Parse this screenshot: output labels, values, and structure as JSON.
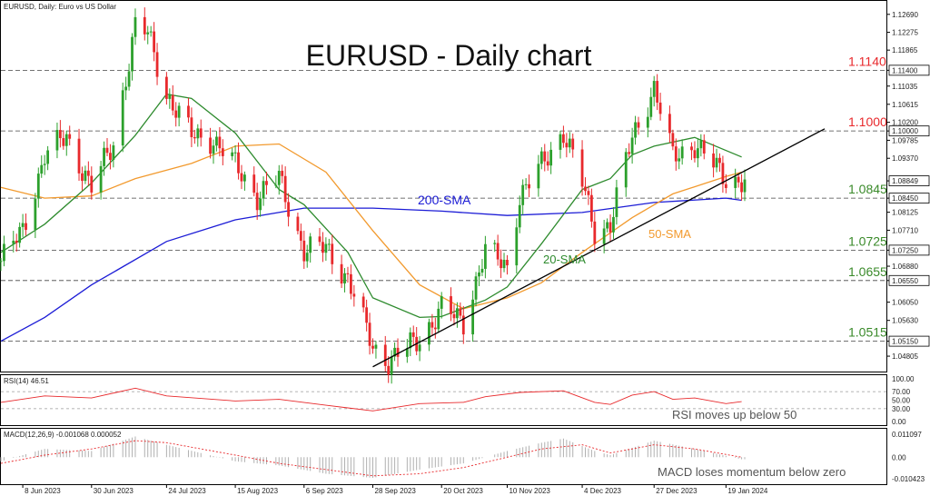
{
  "chart_data": {
    "type": "candlestick",
    "title": "EURUSD - Daily chart",
    "header": {
      "symbol_line": "EURUSD, Daily:  Euro vs US Dollar"
    },
    "colors": {
      "bull": "#2ca02c",
      "bear": "#e8292c",
      "sma20": "#2e8b2e",
      "sma50": "#f29a2e",
      "sma200": "#1c1cd6",
      "trendline": "#000000",
      "level_label": "#e8292c",
      "support_label": "#3a8a2a",
      "rsi": "#e8292c",
      "macd_signal": "#e8292c",
      "macd_hist": "#b0b0b0"
    },
    "x_labels": [
      "8 Jun 2023",
      "30 Jun 2023",
      "24 Jul 2023",
      "15 Aug 2023",
      "6 Sep 2023",
      "28 Sep 2023",
      "20 Oct 2023",
      "10 Nov 2023",
      "4 Dec 2023",
      "27 Dec 2023",
      "19 Jan 2024"
    ],
    "price_axis": {
      "ylim": [
        1.0445,
        1.13
      ],
      "ticks": [
        "1.12690",
        "1.12275",
        "1.11865",
        "1.11400",
        "1.11035",
        "1.10615",
        "1.10200",
        "1.10000",
        "1.09785",
        "1.09370",
        "1.08849",
        "1.08450",
        "1.08125",
        "1.07710",
        "1.07250",
        "1.06880",
        "1.06550",
        "1.06050",
        "1.05630",
        "1.05150",
        "1.04805"
      ],
      "tick_values": [
        1.1269,
        1.12275,
        1.11865,
        1.114,
        1.11035,
        1.10615,
        1.102,
        1.1,
        1.09785,
        1.0937,
        1.08849,
        1.0845,
        1.08125,
        1.0771,
        1.0725,
        1.0688,
        1.0655,
        1.0605,
        1.0563,
        1.0515,
        1.04805
      ],
      "highlighted": [
        "1.11400",
        "1.10000",
        "1.08849",
        "1.08450",
        "1.07250",
        "1.06550",
        "1.05150"
      ]
    },
    "levels": [
      {
        "value": 1.114,
        "label": "1.1140",
        "kind": "resistance"
      },
      {
        "value": 1.1,
        "label": "1.1000",
        "kind": "resistance"
      },
      {
        "value": 1.0845,
        "label": "1.0845",
        "kind": "support"
      },
      {
        "value": 1.0725,
        "label": "1.0725",
        "kind": "support"
      },
      {
        "value": 1.0655,
        "label": "1.0655",
        "kind": "support"
      },
      {
        "value": 1.0515,
        "label": "1.0515",
        "kind": "support"
      }
    ],
    "annotations": {
      "sma200": "200-SMA",
      "sma50": "50-SMA",
      "sma20": "20-SMA"
    },
    "trendline": {
      "start": {
        "x": "28 Sep 2023",
        "y": 1.0456
      },
      "end": {
        "x": "end",
        "y": 1.1005
      }
    },
    "price_anchors": [
      [
        "1 Jun 2023",
        1.07
      ],
      [
        "8 Jun 2023",
        1.077
      ],
      [
        "15 Jun 2023",
        1.0945
      ],
      [
        "22 Jun 2023",
        1.0985
      ],
      [
        "30 Jun 2023",
        1.087
      ],
      [
        "7 Jul 2023",
        1.097
      ],
      [
        "14 Jul 2023",
        1.124
      ],
      [
        "18 Jul 2023",
        1.1225
      ],
      [
        "24 Jul 2023",
        1.1085
      ],
      [
        "1 Aug 2023",
        1.099
      ],
      [
        "8 Aug 2023",
        1.098
      ],
      [
        "15 Aug 2023",
        1.092
      ],
      [
        "22 Aug 2023",
        1.085
      ],
      [
        "29 Aug 2023",
        1.089
      ],
      [
        "6 Sep 2023",
        1.0725
      ],
      [
        "13 Sep 2023",
        1.073
      ],
      [
        "20 Sep 2023",
        1.066
      ],
      [
        "28 Sep 2023",
        1.05
      ],
      [
        "3 Oct 2023",
        1.047
      ],
      [
        "13 Oct 2023",
        1.052
      ],
      [
        "20 Oct 2023",
        1.059
      ],
      [
        "27 Oct 2023",
        1.056
      ],
      [
        "3 Nov 2023",
        1.0725
      ],
      [
        "10 Nov 2023",
        1.0685
      ],
      [
        "14 Nov 2023",
        1.085
      ],
      [
        "21 Nov 2023",
        1.092
      ],
      [
        "28 Nov 2023",
        1.1
      ],
      [
        "4 Dec 2023",
        1.088
      ],
      [
        "8 Dec 2023",
        1.077
      ],
      [
        "13 Dec 2023",
        1.0785
      ],
      [
        "20 Dec 2023",
        1.0985
      ],
      [
        "27 Dec 2023",
        1.11
      ],
      [
        "2 Jan 2024",
        1.094
      ],
      [
        "9 Jan 2024",
        1.097
      ],
      [
        "19 Jan 2024",
        1.089
      ],
      [
        "24 Jan 2024",
        1.0885
      ]
    ],
    "sma_paths": {
      "sma20": [
        [
          "1 Jun 2023",
          1.072
        ],
        [
          "15 Jun 2023",
          1.0785
        ],
        [
          "30 Jun 2023",
          1.088
        ],
        [
          "14 Jul 2023",
          1.099
        ],
        [
          "24 Jul 2023",
          1.1085
        ],
        [
          "1 Aug 2023",
          1.1075
        ],
        [
          "15 Aug 2023",
          1.0995
        ],
        [
          "29 Aug 2023",
          1.0865
        ],
        [
          "6 Sep 2023",
          1.083
        ],
        [
          "20 Sep 2023",
          1.072
        ],
        [
          "28 Sep 2023",
          1.0615
        ],
        [
          "13 Oct 2023",
          1.057
        ],
        [
          "20 Oct 2023",
          1.0572
        ],
        [
          "3 Nov 2023",
          1.061
        ],
        [
          "10 Nov 2023",
          1.064
        ],
        [
          "21 Nov 2023",
          1.074
        ],
        [
          "4 Dec 2023",
          1.0865
        ],
        [
          "13 Dec 2023",
          1.089
        ],
        [
          "20 Dec 2023",
          1.0945
        ],
        [
          "27 Dec 2023",
          1.0965
        ],
        [
          "9 Jan 2024",
          1.0985
        ],
        [
          "24 Jan 2024",
          1.094
        ]
      ],
      "sma50": [
        [
          "1 Jun 2023",
          1.087
        ],
        [
          "15 Jun 2023",
          1.0845
        ],
        [
          "30 Jun 2023",
          1.085
        ],
        [
          "14 Jul 2023",
          1.089
        ],
        [
          "1 Aug 2023",
          1.0925
        ],
        [
          "15 Aug 2023",
          1.0965
        ],
        [
          "29 Aug 2023",
          1.097
        ],
        [
          "13 Sep 2023",
          1.0905
        ],
        [
          "28 Sep 2023",
          1.077
        ],
        [
          "13 Oct 2023",
          1.0645
        ],
        [
          "27 Oct 2023",
          1.059
        ],
        [
          "10 Nov 2023",
          1.0615
        ],
        [
          "21 Nov 2023",
          1.065
        ],
        [
          "4 Dec 2023",
          1.072
        ],
        [
          "20 Dec 2023",
          1.08
        ],
        [
          "2 Jan 2024",
          1.0855
        ],
        [
          "19 Jan 2024",
          1.0895
        ],
        [
          "24 Jan 2024",
          1.0905
        ]
      ],
      "sma200": [
        [
          "1 Jun 2023",
          1.0515
        ],
        [
          "15 Jun 2023",
          1.057
        ],
        [
          "30 Jun 2023",
          1.0645
        ],
        [
          "24 Jul 2023",
          1.0745
        ],
        [
          "15 Aug 2023",
          1.0795
        ],
        [
          "6 Sep 2023",
          1.0822
        ],
        [
          "28 Sep 2023",
          1.0822
        ],
        [
          "20 Oct 2023",
          1.0815
        ],
        [
          "10 Nov 2023",
          1.0805
        ],
        [
          "4 Dec 2023",
          1.0812
        ],
        [
          "27 Dec 2023",
          1.0835
        ],
        [
          "19 Jan 2024",
          1.0845
        ],
        [
          "24 Jan 2024",
          1.084
        ]
      ]
    },
    "rsi": {
      "header": "RSI(14) 46.51",
      "ticks": [
        "100.00",
        "70.00",
        "50.00",
        "30.00",
        "0.00"
      ],
      "tick_values": [
        100,
        70,
        50,
        30,
        0
      ],
      "annotation": "RSI moves up below 50",
      "path": [
        [
          "1 Jun 2023",
          45
        ],
        [
          "15 Jun 2023",
          60
        ],
        [
          "30 Jun 2023",
          55
        ],
        [
          "14 Jul 2023",
          78
        ],
        [
          "24 Jul 2023",
          60
        ],
        [
          "15 Aug 2023",
          48
        ],
        [
          "29 Aug 2023",
          52
        ],
        [
          "13 Sep 2023",
          38
        ],
        [
          "28 Sep 2023",
          25
        ],
        [
          "13 Oct 2023",
          42
        ],
        [
          "27 Oct 2023",
          45
        ],
        [
          "3 Nov 2023",
          58
        ],
        [
          "14 Nov 2023",
          68
        ],
        [
          "28 Nov 2023",
          72
        ],
        [
          "8 Dec 2023",
          45
        ],
        [
          "13 Dec 2023",
          40
        ],
        [
          "20 Dec 2023",
          62
        ],
        [
          "27 Dec 2023",
          70
        ],
        [
          "2 Jan 2024",
          52
        ],
        [
          "9 Jan 2024",
          55
        ],
        [
          "19 Jan 2024",
          42
        ],
        [
          "24 Jan 2024",
          46.51
        ]
      ]
    },
    "macd": {
      "header": "MACD(12,26,9) -0.001068 0.000052",
      "ticks": [
        "0.011097",
        "0.00",
        "-0.010423"
      ],
      "tick_values": [
        0.011097,
        0,
        -0.010423
      ],
      "annotation": "MACD loses momentum below zero",
      "signal_path": [
        [
          "1 Jun 2023",
          -0.003
        ],
        [
          "15 Jun 2023",
          0.001
        ],
        [
          "30 Jun 2023",
          0.004
        ],
        [
          "14 Jul 2023",
          0.008
        ],
        [
          "24 Jul 2023",
          0.007
        ],
        [
          "15 Aug 2023",
          0.001
        ],
        [
          "29 Aug 2023",
          -0.003
        ],
        [
          "13 Sep 2023",
          -0.006
        ],
        [
          "28 Sep 2023",
          -0.009
        ],
        [
          "13 Oct 2023",
          -0.008
        ],
        [
          "27 Oct 2023",
          -0.005
        ],
        [
          "10 Nov 2023",
          0.0
        ],
        [
          "21 Nov 2023",
          0.004
        ],
        [
          "4 Dec 2023",
          0.006
        ],
        [
          "13 Dec 2023",
          0.002
        ],
        [
          "27 Dec 2023",
          0.006
        ],
        [
          "9 Jan 2024",
          0.004
        ],
        [
          "24 Jan 2024",
          0.0
        ]
      ],
      "hist_path": [
        [
          "1 Jun 2023",
          -0.002
        ],
        [
          "15 Jun 2023",
          0.004
        ],
        [
          "30 Jun 2023",
          0.003
        ],
        [
          "14 Jul 2023",
          0.01
        ],
        [
          "24 Jul 2023",
          0.006
        ],
        [
          "15 Aug 2023",
          -0.002
        ],
        [
          "29 Aug 2023",
          -0.004
        ],
        [
          "13 Sep 2023",
          -0.008
        ],
        [
          "28 Sep 2023",
          -0.01
        ],
        [
          "13 Oct 2023",
          -0.006
        ],
        [
          "27 Oct 2023",
          -0.003
        ],
        [
          "10 Nov 2023",
          0.003
        ],
        [
          "21 Nov 2023",
          0.007
        ],
        [
          "28 Nov 2023",
          0.009
        ],
        [
          "8 Dec 2023",
          0.003
        ],
        [
          "13 Dec 2023",
          0.001
        ],
        [
          "27 Dec 2023",
          0.008
        ],
        [
          "9 Jan 2024",
          0.004
        ],
        [
          "24 Jan 2024",
          -0.001
        ]
      ]
    }
  }
}
